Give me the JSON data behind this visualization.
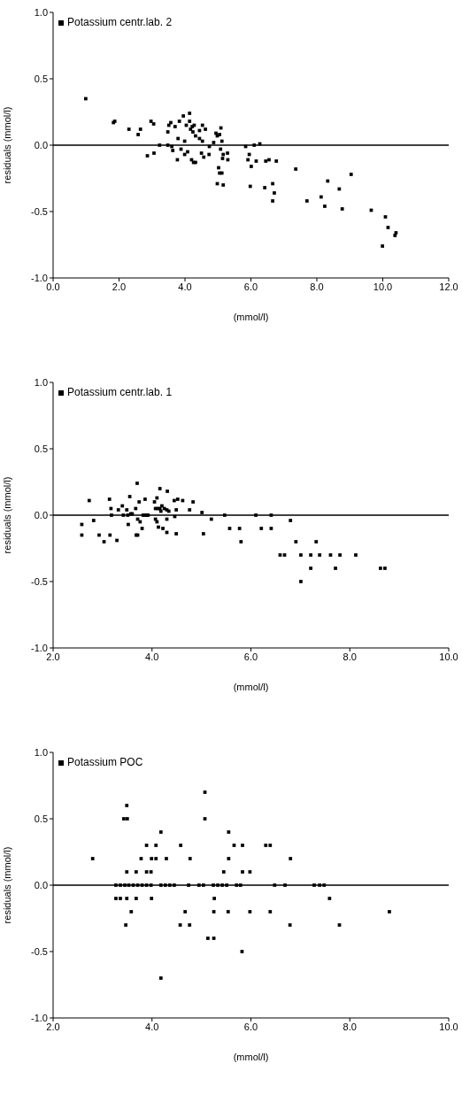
{
  "chart_data": [
    {
      "type": "scatter",
      "xlabel": "(mmol/l)",
      "ylabel": "residuals (mmol/l)",
      "xlim": [
        0,
        12
      ],
      "ylim": [
        -1,
        1
      ],
      "xticks": [
        {
          "value": 0,
          "label": "0.0"
        },
        {
          "value": 2,
          "label": "2.0"
        },
        {
          "value": 4,
          "label": "4.0"
        },
        {
          "value": 6,
          "label": "6.0"
        },
        {
          "value": 8,
          "label": "8.0"
        },
        {
          "value": 10,
          "label": "10.0"
        },
        {
          "value": 12,
          "label": "12.0"
        }
      ],
      "yticks": [
        {
          "value": -1,
          "label": "-1.0"
        },
        {
          "value": -0.5,
          "label": "-0.5"
        },
        {
          "value": 0,
          "label": "0.0"
        },
        {
          "value": 0.5,
          "label": "0.5"
        },
        {
          "value": 1,
          "label": "1.0"
        }
      ],
      "grid": false,
      "legend": "top left",
      "marker": "square",
      "ref_lines": [
        {
          "axis": "y",
          "value": 0,
          "color": "#000000"
        }
      ],
      "series": [
        {
          "name": "Potassium centr.lab. 2",
          "color": "#000000",
          "x": [
            0.99,
            1.83,
            1.87,
            2.3,
            2.58,
            2.65,
            2.86,
            2.97,
            3.06,
            3.05,
            3.23,
            3.48,
            3.48,
            3.51,
            3.57,
            3.6,
            3.63,
            3.7,
            3.77,
            3.79,
            3.83,
            3.88,
            3.95,
            3.99,
            4.04,
            4.08,
            3.99,
            4.14,
            4.14,
            4.17,
            4.22,
            4.24,
            4.28,
            4.2,
            4.26,
            4.32,
            4.32,
            4.44,
            4.53,
            4.62,
            4.53,
            4.44,
            4.5,
            4.57,
            4.74,
            4.73,
            4.87,
            4.94,
            4.98,
            5.05,
            5.09,
            5.12,
            5.08,
            5.16,
            5.14,
            5.3,
            5.29,
            5.02,
            5.05,
            5.12,
            4.98,
            5.16,
            5.84,
            6.1,
            6.27,
            5.95,
            5.91,
            6.16,
            6.01,
            6.45,
            6.55,
            6.77,
            5.98,
            6.42,
            6.66,
            6.71,
            6.66,
            7.36,
            7.7,
            8.13,
            8.24,
            8.33,
            8.68,
            8.77,
            9.04,
            9.65,
            9.99,
            10.08,
            10.16,
            10.37,
            10.4
          ],
          "values": [
            0.35,
            0.17,
            0.18,
            0.12,
            0.08,
            0.12,
            -0.08,
            0.18,
            -0.06,
            0.16,
            0,
            0,
            0.1,
            0.15,
            0.17,
            -0.01,
            -0.04,
            0.14,
            -0.11,
            0.05,
            0.18,
            -0.03,
            0.22,
            -0.07,
            0.15,
            -0.05,
            0.03,
            0.24,
            0.18,
            0.12,
            0.14,
            0.1,
            0.15,
            -0.11,
            -0.13,
            -0.13,
            0.07,
            0.11,
            0.15,
            0.12,
            0.03,
            0.05,
            -0.06,
            -0.09,
            -0.01,
            -0.07,
            0.02,
            0.09,
            0.07,
            0.08,
            0.13,
            0.03,
            -0.03,
            -0.07,
            -0.1,
            -0.11,
            -0.06,
            -0.17,
            -0.21,
            -0.21,
            -0.29,
            -0.3,
            -0.01,
            0,
            0.01,
            -0.07,
            -0.11,
            -0.12,
            -0.16,
            -0.12,
            -0.11,
            -0.12,
            -0.31,
            -0.32,
            -0.29,
            -0.36,
            -0.42,
            -0.18,
            -0.42,
            -0.39,
            -0.46,
            -0.27,
            -0.33,
            -0.48,
            -0.22,
            -0.49,
            -0.76,
            -0.54,
            -0.62,
            -0.68,
            -0.66
          ]
        }
      ]
    },
    {
      "type": "scatter",
      "xlabel": "(mmol/l)",
      "ylabel": "residuals (mmol/l)",
      "xlim": [
        2,
        10
      ],
      "ylim": [
        -1,
        1
      ],
      "xticks": [
        {
          "value": 2,
          "label": "2.0"
        },
        {
          "value": 4,
          "label": "4.0"
        },
        {
          "value": 6,
          "label": "6.0"
        },
        {
          "value": 8,
          "label": "8.0"
        },
        {
          "value": 10,
          "label": "10.0"
        }
      ],
      "yticks": [
        {
          "value": -1,
          "label": "-1.0"
        },
        {
          "value": -0.5,
          "label": "-0.5"
        },
        {
          "value": 0,
          "label": "0.0"
        },
        {
          "value": 0.5,
          "label": "0.5"
        },
        {
          "value": 1,
          "label": "1.0"
        }
      ],
      "grid": false,
      "legend": "top left",
      "marker": "square",
      "ref_lines": [
        {
          "axis": "y",
          "value": 0,
          "color": "#000000"
        }
      ],
      "series": [
        {
          "name": "Potassium centr.lab. 1",
          "color": "#000000",
          "x": [
            2.58,
            2.58,
            2.73,
            2.82,
            2.93,
            3.03,
            3.14,
            3.17,
            3.18,
            3.15,
            3.29,
            3.32,
            3.4,
            3.42,
            3.49,
            3.51,
            3.52,
            3.55,
            3.57,
            3.6,
            3.67,
            3.7,
            3.68,
            3.71,
            3.71,
            3.74,
            3.76,
            3.8,
            3.82,
            3.86,
            3.89,
            3.92,
            3.86,
            4.05,
            4.1,
            4.07,
            4.12,
            4.16,
            4.07,
            4.1,
            4.13,
            4.22,
            4.16,
            4.18,
            4.2,
            4.25,
            4.3,
            4.34,
            4.31,
            4.3,
            4.3,
            4.45,
            4.52,
            4.62,
            4.46,
            4.49,
            4.49,
            4.76,
            4.83,
            5.01,
            5.04,
            5.2,
            5.47,
            5.57,
            5.77,
            5.8,
            6.1,
            6.41,
            6.21,
            6.41,
            6.8,
            6.91,
            7.32,
            6.59,
            6.68,
            7.01,
            7.21,
            7.39,
            7.61,
            7.8,
            8.12,
            7.21,
            7.71,
            7.01,
            8.62,
            8.71
          ],
          "values": [
            -0.07,
            -0.15,
            0.11,
            -0.04,
            -0.15,
            -0.2,
            0.12,
            0.05,
            0,
            -0.15,
            -0.19,
            0.04,
            0.07,
            0,
            0.04,
            0,
            -0.07,
            0.14,
            0.01,
            0.01,
            0.05,
            0.24,
            -0.15,
            -0.15,
            -0.03,
            0.1,
            -0.05,
            -0.1,
            0,
            0.12,
            0,
            0,
            0,
            0.1,
            0.13,
            0.05,
            0.05,
            0.05,
            -0.03,
            -0.05,
            -0.09,
            -0.1,
            0.2,
            0.03,
            0.07,
            0.05,
            0.04,
            0.03,
            0.18,
            -0.03,
            -0.13,
            0.11,
            0.12,
            0.11,
            -0.01,
            0.04,
            -0.14,
            0.04,
            0.1,
            0.02,
            -0.14,
            -0.03,
            0,
            -0.1,
            -0.1,
            -0.2,
            0,
            0,
            -0.1,
            -0.1,
            -0.04,
            -0.2,
            -0.2,
            -0.3,
            -0.3,
            -0.3,
            -0.3,
            -0.3,
            -0.3,
            -0.3,
            -0.3,
            -0.4,
            -0.4,
            -0.5,
            -0.4,
            -0.4
          ]
        }
      ]
    },
    {
      "type": "scatter",
      "xlabel": "(mmol/l)",
      "ylabel": "residuals (mmol/l)",
      "xlim": [
        2,
        10
      ],
      "ylim": [
        -1,
        1
      ],
      "xticks": [
        {
          "value": 2,
          "label": "2.0"
        },
        {
          "value": 4,
          "label": "4.0"
        },
        {
          "value": 6,
          "label": "6.0"
        },
        {
          "value": 8,
          "label": "8.0"
        },
        {
          "value": 10,
          "label": "10.0"
        }
      ],
      "yticks": [
        {
          "value": -1,
          "label": "-1.0"
        },
        {
          "value": -0.5,
          "label": "-0.5"
        },
        {
          "value": 0,
          "label": "0.0"
        },
        {
          "value": 0.5,
          "label": "0.5"
        },
        {
          "value": 1,
          "label": "1.0"
        }
      ],
      "grid": false,
      "legend": "top left",
      "marker": "square",
      "ref_lines": [
        {
          "axis": "y",
          "value": 0,
          "color": "#000000"
        }
      ],
      "series": [
        {
          "name": "Potassium POC",
          "color": "#000000",
          "x": [
            2.8,
            3.27,
            3.36,
            3.49,
            3.43,
            3.5,
            3.49,
            3.49,
            3.58,
            3.47,
            3.68,
            3.68,
            3.78,
            3.89,
            3.89,
            3.98,
            3.99,
            4.08,
            3.99,
            4.08,
            4.18,
            4.18,
            4.29,
            3.27,
            3.36,
            3.45,
            3.53,
            3.62,
            3.71,
            3.8,
            3.89,
            3.98,
            4.18,
            4.27,
            4.36,
            4.45,
            4.74,
            4.95,
            5.04,
            5.24,
            5.33,
            5.42,
            5.51,
            5.71,
            5.79,
            4.58,
            4.67,
            4.57,
            4.76,
            4.77,
            5.07,
            5.07,
            5.13,
            5.25,
            5.26,
            5.25,
            5.45,
            5.55,
            5.55,
            5.54,
            5.66,
            5.83,
            5.83,
            5.82,
            5.98,
            5.98,
            6.3,
            6.39,
            6.39,
            6.48,
            6.69,
            6.79,
            6.8,
            7.28,
            7.39,
            7.48,
            7.59,
            7.79,
            8.8
          ],
          "values": [
            0.2,
            -0.1,
            -0.1,
            -0.1,
            0.5,
            0.5,
            0.6,
            0.1,
            -0.2,
            -0.3,
            0.1,
            -0.1,
            0.2,
            0.3,
            0.1,
            0.1,
            -0.1,
            0.3,
            0.2,
            0.2,
            0.4,
            -0.7,
            0.2,
            0,
            0,
            0,
            0,
            0,
            0,
            0,
            0,
            0,
            0,
            0,
            0,
            0,
            0,
            0,
            0,
            0,
            0,
            0,
            0,
            0,
            0,
            0.3,
            -0.2,
            -0.3,
            -0.3,
            0.2,
            0.7,
            0.5,
            -0.4,
            -0.4,
            -0.1,
            -0.2,
            0.1,
            0.4,
            0.2,
            -0.2,
            0.3,
            0.3,
            0.1,
            -0.5,
            0.1,
            -0.2,
            0.3,
            0.3,
            -0.2,
            0,
            0,
            -0.3,
            0.2,
            0,
            0,
            0,
            -0.1,
            -0.3,
            -0.2
          ]
        }
      ]
    }
  ]
}
